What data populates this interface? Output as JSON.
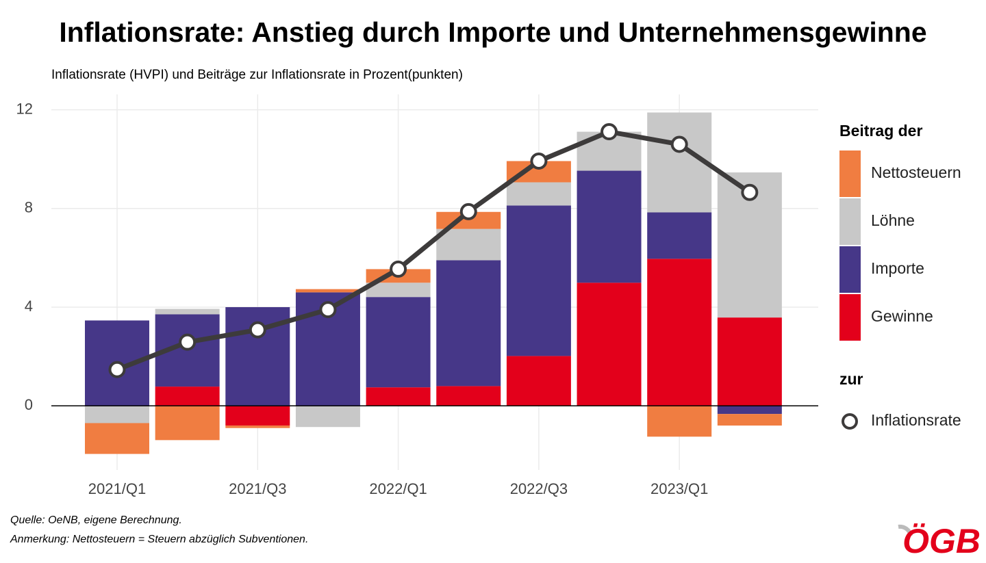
{
  "chart_data": {
    "type": "stacked-bar-line",
    "title": "Inflationsrate: Anstieg durch Importe und Unternehmensgewinne",
    "subtitle": "Inflationsrate (HVPI) und Beiträge zur Inflationsrate in Prozent(punkten)",
    "categories": [
      "2021/Q1",
      null,
      "2021/Q3",
      null,
      "2022/Q1",
      null,
      "2022/Q3",
      null,
      "2023/Q1",
      null
    ],
    "series": [
      {
        "name": "Gewinne",
        "type": "bar",
        "color": "#e3001b",
        "values": [
          0,
          0.78,
          -0.8,
          0,
          0.75,
          0.8,
          2.02,
          4.99,
          5.96,
          3.58
        ]
      },
      {
        "name": "Importe",
        "type": "bar",
        "color": "#463788",
        "values": [
          3.46,
          2.93,
          4.0,
          4.6,
          3.66,
          5.1,
          6.1,
          4.54,
          1.88,
          -0.33
        ]
      },
      {
        "name": "Löhne",
        "type": "bar",
        "color": "#c8c8c8",
        "values": [
          -0.7,
          0.22,
          0,
          -0.86,
          0.58,
          1.27,
          0.94,
          1.58,
          4.05,
          5.88
        ]
      },
      {
        "name": "Nettosteuern",
        "type": "bar",
        "color": "#f07d41",
        "values": [
          -1.25,
          -1.39,
          -0.1,
          0.13,
          0.55,
          0.69,
          0.86,
          0,
          -1.25,
          -0.47
        ]
      },
      {
        "name": "Inflationsrate",
        "type": "line",
        "color": "#3d3b3b",
        "values": [
          1.47,
          2.58,
          3.08,
          3.9,
          5.54,
          7.87,
          9.92,
          11.11,
          10.6,
          8.65
        ]
      }
    ],
    "legend_title": "Beitrag der",
    "line_legend_title": "zur",
    "ylim": [
      -2.6,
      12.9
    ],
    "yticks": [
      0,
      4,
      8,
      12
    ],
    "grid": true,
    "notes": [
      "Quelle: OeNB, eigene Berechnung.",
      "Anmerkung: Nettosteuern = Steuern abzüglich Subventionen."
    ],
    "logo": "ÖGB"
  }
}
